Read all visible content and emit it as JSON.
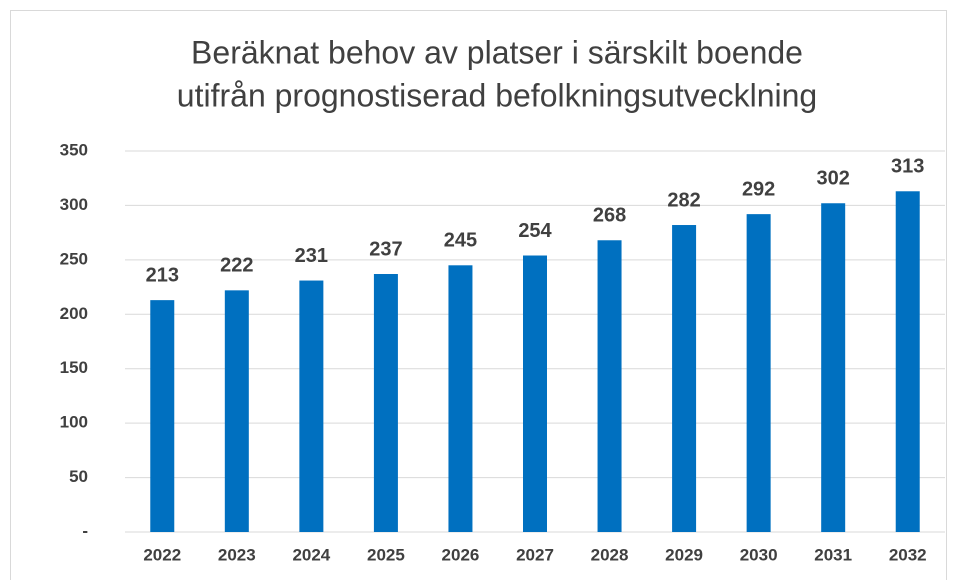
{
  "chart_data": {
    "type": "bar",
    "title": [
      "Beräknat behov av platser i särskilt boende",
      "utifrån prognostiserad befolkningsutvecklning"
    ],
    "categories": [
      "2022",
      "2023",
      "2024",
      "2025",
      "2026",
      "2027",
      "2028",
      "2029",
      "2030",
      "2031",
      "2032"
    ],
    "values": [
      213,
      222,
      231,
      237,
      245,
      254,
      268,
      282,
      292,
      302,
      313
    ],
    "color": "#0070c0",
    "ylim": [
      0,
      350
    ],
    "yticks": [
      {
        "value": 0,
        "label": "-"
      },
      50,
      100,
      150,
      200,
      250,
      300,
      350
    ],
    "grid": true
  }
}
